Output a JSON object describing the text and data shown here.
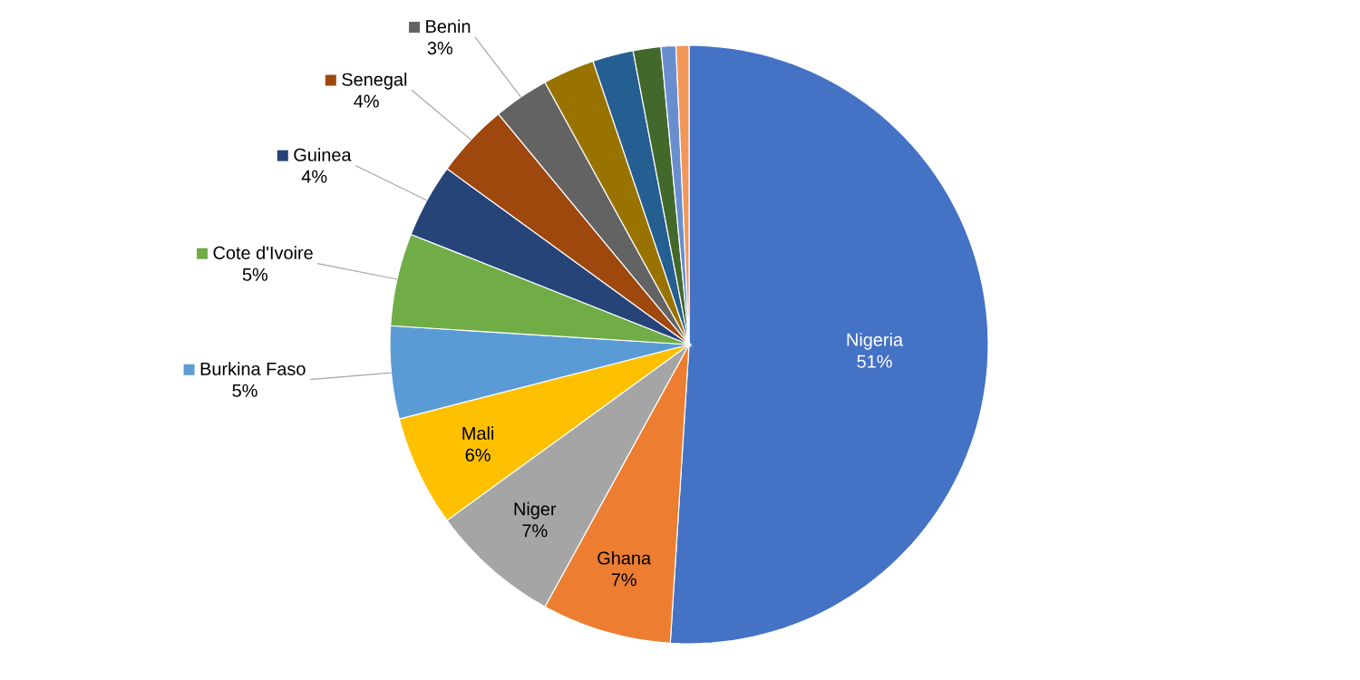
{
  "chart_data": {
    "type": "pie",
    "legend": "left",
    "categories": [
      "Nigeria",
      "Ghana",
      "Niger",
      "Mali",
      "Burkina Faso",
      "Cote d'Ivoire",
      "Guinea",
      "Senegal",
      "Benin",
      null,
      null,
      null,
      null,
      null
    ],
    "values": [
      51,
      7,
      7,
      6,
      5,
      5,
      4,
      4,
      3,
      2.8,
      2.2,
      1.5,
      0.8,
      0.7
    ],
    "value_labels": [
      "51%",
      "7%",
      "7%",
      "6%",
      "5%",
      "5%",
      "4%",
      "4%",
      "3%",
      null,
      null,
      null,
      null,
      null
    ],
    "colors": [
      "#4472c4",
      "#ed7d31",
      "#a5a5a5",
      "#ffc000",
      "#5b9bd5",
      "#70ad47",
      "#264478",
      "#9e480e",
      "#636363",
      "#997300",
      "#255e91",
      "#43682b",
      "#698ed0",
      "#f1975a"
    ]
  }
}
